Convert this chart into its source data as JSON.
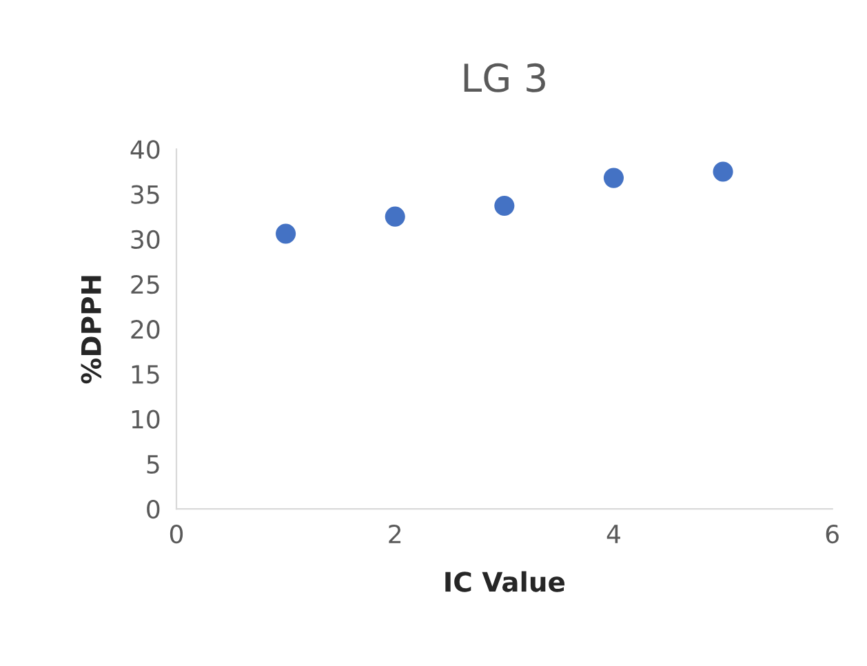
{
  "chart_data": {
    "type": "scatter",
    "title": "LG 3",
    "xlabel": "IC Value",
    "ylabel": "%DPPH",
    "x": [
      1,
      2,
      3,
      4,
      5
    ],
    "series": [
      {
        "color": "#4472c4",
        "values": [
          30.6,
          32.5,
          33.7,
          36.8,
          37.5
        ]
      }
    ],
    "xlim": [
      0,
      6
    ],
    "xticks": [
      0,
      2,
      4,
      6
    ],
    "ylim": [
      0,
      40
    ],
    "yticks": [
      0,
      5,
      10,
      15,
      20,
      25,
      30,
      35,
      40
    ],
    "grid": false,
    "legend": false,
    "marker": "circle"
  }
}
